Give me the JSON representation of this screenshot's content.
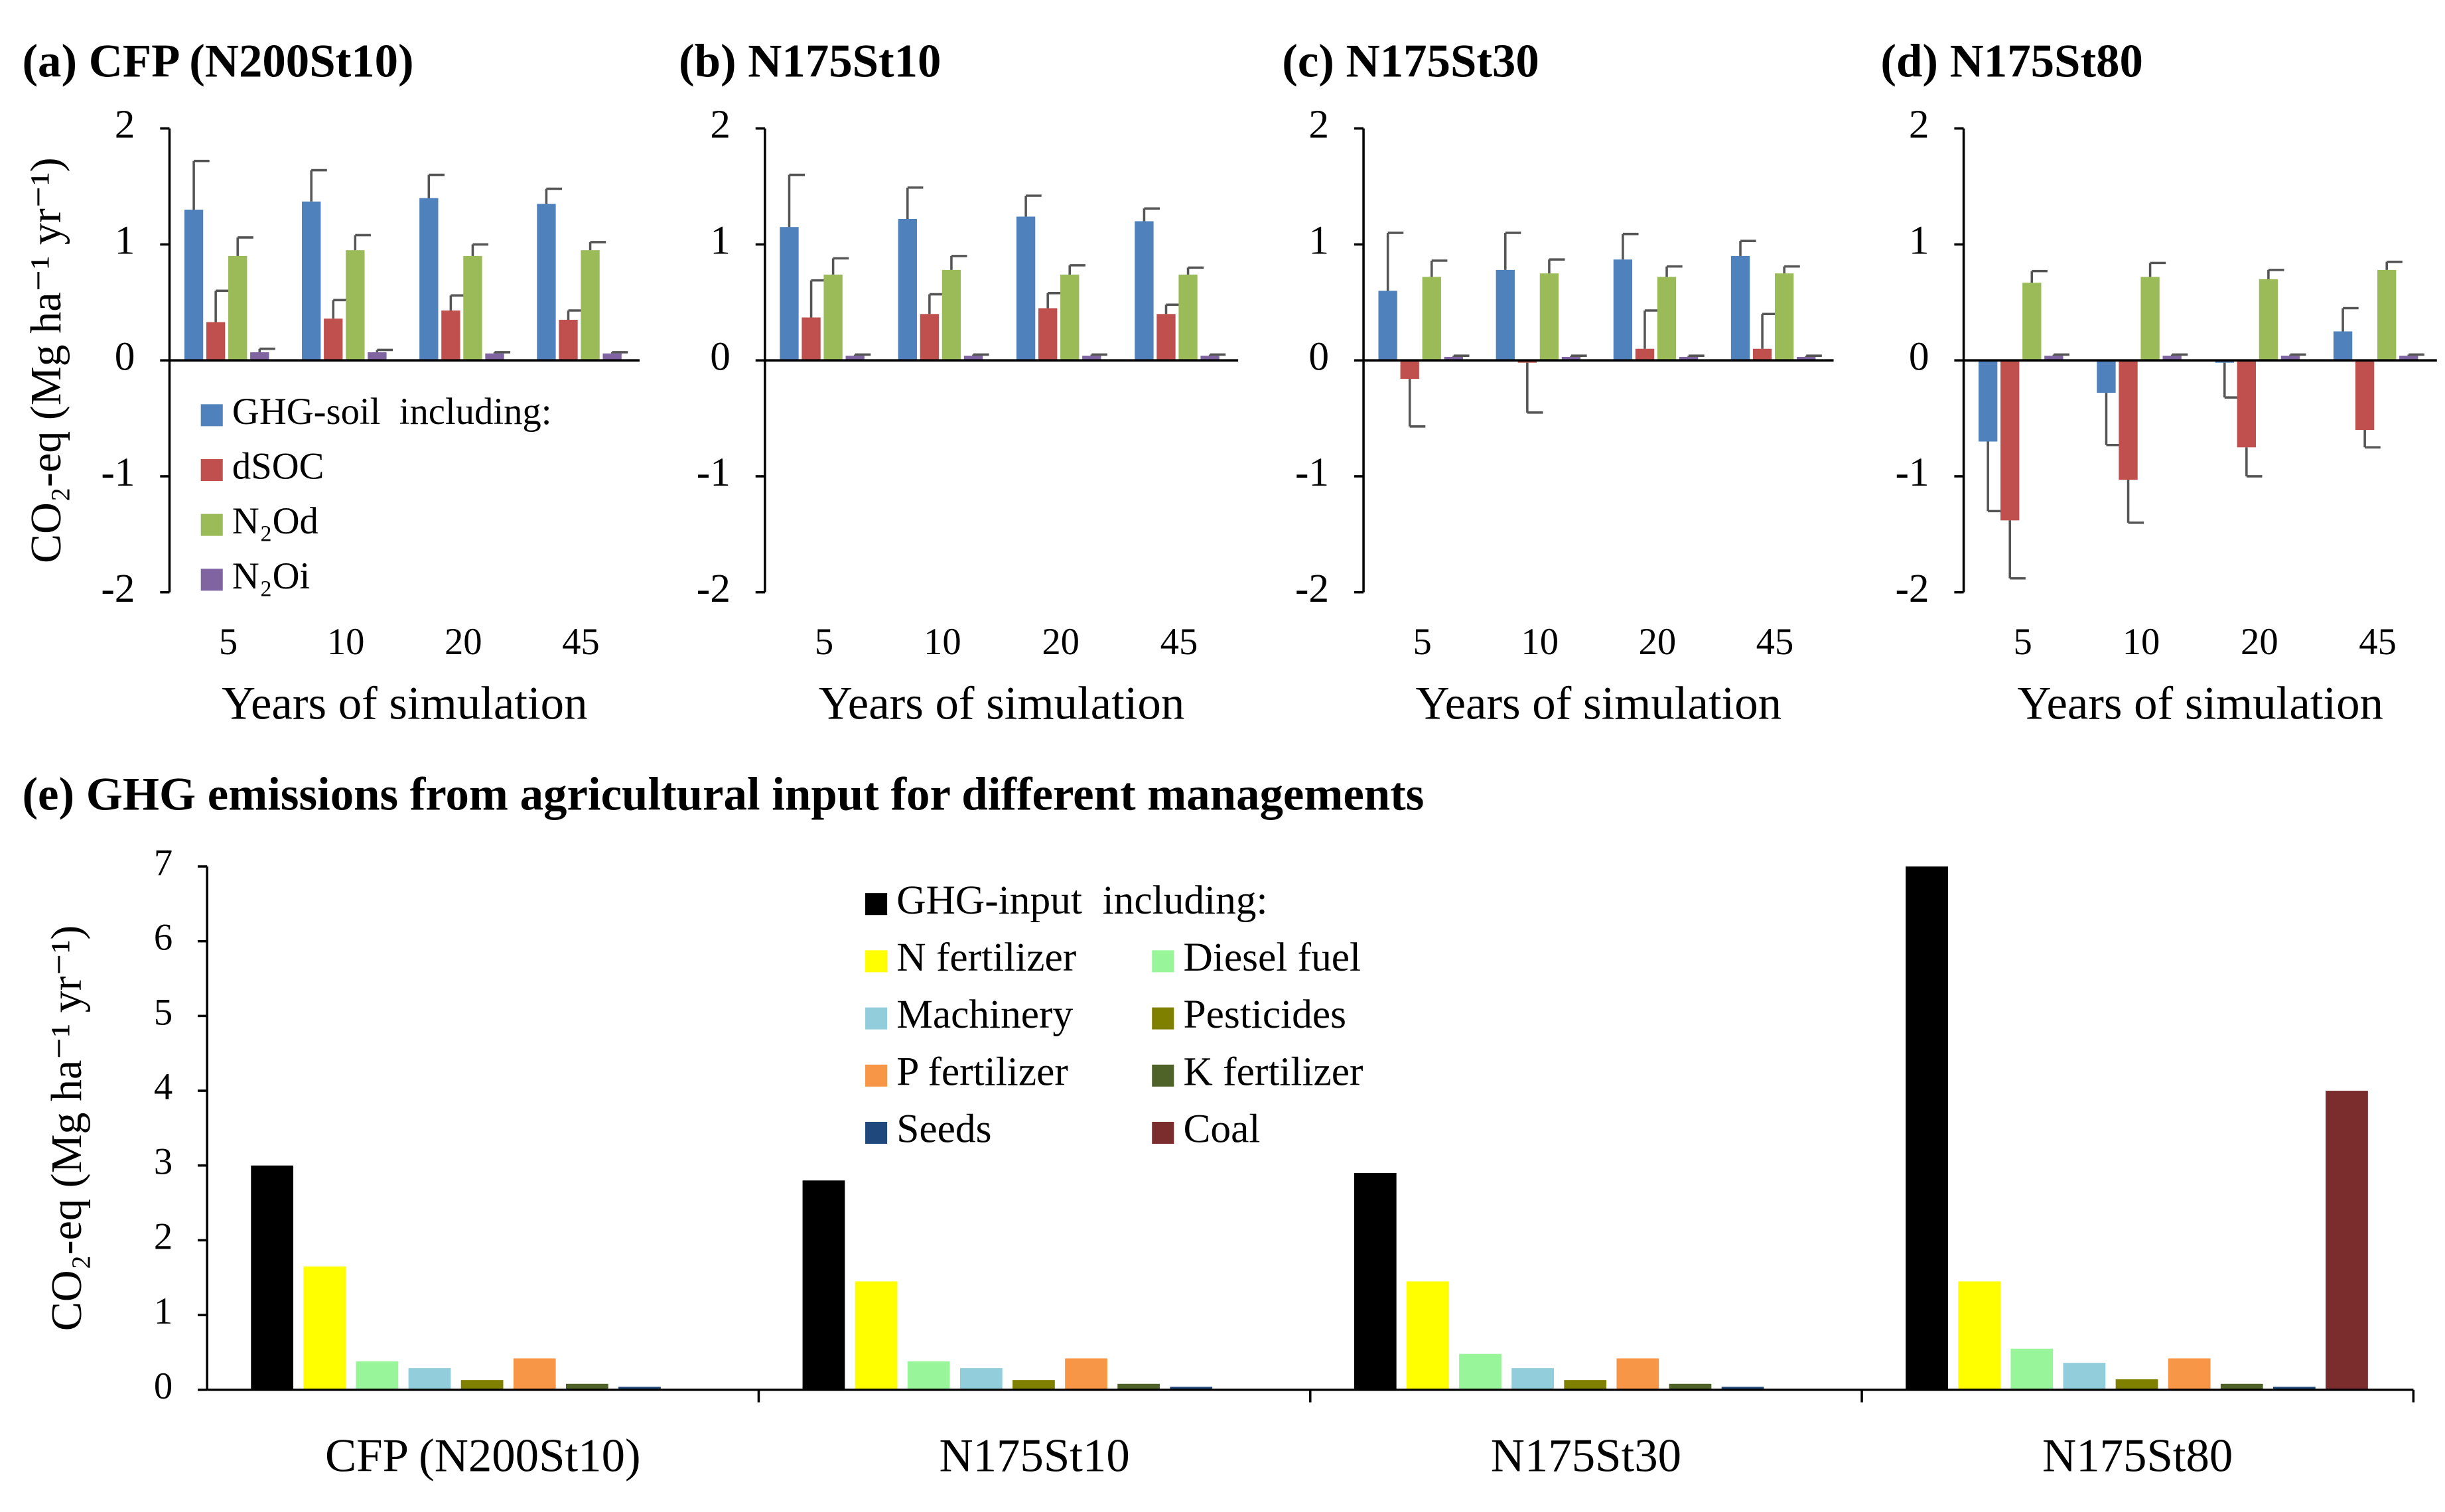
{
  "chart_data": [
    {
      "type": "bar",
      "title": "(a) CFP (N200St10)",
      "x_label": "Years of simulation",
      "y_label": "CO₂-eq (Mg ha⁻¹ yr⁻¹)",
      "categories": [
        "5",
        "10",
        "20",
        "45"
      ],
      "legend": "lower left",
      "series": [
        {
          "name": "GHG-soil  including:",
          "color": "#4f81bd",
          "values": [
            1.3,
            1.37,
            1.4,
            1.35
          ],
          "errors": [
            0.42,
            0.27,
            0.2,
            0.13
          ]
        },
        {
          "name": "dSOC",
          "color": "#c0504d",
          "values": [
            0.33,
            0.36,
            0.43,
            0.35
          ],
          "errors": [
            0.27,
            0.16,
            0.13,
            0.08
          ]
        },
        {
          "name": "N₂Od",
          "color": "#9bbb59",
          "values": [
            0.9,
            0.95,
            0.9,
            0.95
          ],
          "errors": [
            0.16,
            0.13,
            0.1,
            0.07
          ]
        },
        {
          "name": "N₂Oi",
          "color": "#8064a2",
          "values": [
            0.07,
            0.07,
            0.06,
            0.06
          ],
          "errors": [
            0.03,
            0.02,
            0.01,
            0.01
          ]
        }
      ],
      "ylim": [
        -2,
        2
      ],
      "yticks": [
        -2,
        -1,
        0,
        1,
        2
      ]
    },
    {
      "type": "bar",
      "title": "(b) N175St10",
      "x_label": "Years of simulation",
      "categories": [
        "5",
        "10",
        "20",
        "45"
      ],
      "series": [
        {
          "color": "#4f81bd",
          "values": [
            1.15,
            1.22,
            1.24,
            1.2
          ],
          "errors": [
            0.45,
            0.27,
            0.18,
            0.11
          ]
        },
        {
          "color": "#c0504d",
          "values": [
            0.37,
            0.4,
            0.45,
            0.4
          ],
          "errors": [
            0.32,
            0.17,
            0.13,
            0.08
          ]
        },
        {
          "color": "#9bbb59",
          "values": [
            0.74,
            0.78,
            0.74,
            0.74
          ],
          "errors": [
            0.14,
            0.12,
            0.08,
            0.06
          ]
        },
        {
          "color": "#8064a2",
          "values": [
            0.04,
            0.04,
            0.04,
            0.04
          ],
          "errors": [
            0.01,
            0.01,
            0.01,
            0.01
          ]
        }
      ],
      "ylim": [
        -2,
        2
      ],
      "yticks": [
        -2,
        -1,
        0,
        1,
        2
      ]
    },
    {
      "type": "bar",
      "title": "(c) N175St30",
      "x_label": "Years of simulation",
      "categories": [
        "5",
        "10",
        "20",
        "45"
      ],
      "series": [
        {
          "color": "#4f81bd",
          "values": [
            0.6,
            0.78,
            0.87,
            0.9
          ],
          "errors": [
            0.5,
            0.32,
            0.22,
            0.13
          ]
        },
        {
          "color": "#c0504d",
          "values": [
            -0.16,
            -0.02,
            0.1,
            0.1
          ],
          "errors": [
            0.41,
            0.43,
            0.33,
            0.3
          ]
        },
        {
          "color": "#9bbb59",
          "values": [
            0.72,
            0.75,
            0.72,
            0.75
          ],
          "errors": [
            0.14,
            0.12,
            0.09,
            0.06
          ]
        },
        {
          "color": "#8064a2",
          "values": [
            0.03,
            0.03,
            0.03,
            0.03
          ],
          "errors": [
            0.01,
            0.01,
            0.01,
            0.01
          ]
        }
      ],
      "ylim": [
        -2,
        2
      ],
      "yticks": [
        -2,
        -1,
        0,
        1,
        2
      ]
    },
    {
      "type": "bar",
      "title": "(d) N175St80",
      "x_label": "Years of simulation",
      "categories": [
        "5",
        "10",
        "20",
        "45"
      ],
      "series": [
        {
          "color": "#4f81bd",
          "values": [
            -0.7,
            -0.28,
            -0.02,
            0.25
          ],
          "errors": [
            0.6,
            0.45,
            0.3,
            0.2
          ]
        },
        {
          "color": "#c0504d",
          "values": [
            -1.38,
            -1.03,
            -0.75,
            -0.6
          ],
          "errors": [
            0.5,
            0.37,
            0.25,
            0.15
          ]
        },
        {
          "color": "#9bbb59",
          "values": [
            0.67,
            0.72,
            0.7,
            0.78
          ],
          "errors": [
            0.1,
            0.12,
            0.08,
            0.07
          ]
        },
        {
          "color": "#8064a2",
          "values": [
            0.04,
            0.04,
            0.04,
            0.04
          ],
          "errors": [
            0.01,
            0.01,
            0.01,
            0.01
          ]
        }
      ],
      "ylim": [
        -2,
        2
      ],
      "yticks": [
        -2,
        -1,
        0,
        1,
        2
      ]
    },
    {
      "type": "bar",
      "title": "(e) GHG emissions from agricultural input for different managements",
      "y_label": "CO₂-eq (Mg ha⁻¹ yr⁻¹)",
      "categories": [
        "CFP (N200St10)",
        "N175St10",
        "N175St30",
        "N175St80"
      ],
      "legend": "upper center",
      "series": [
        {
          "name": "GHG-input  including:",
          "color": "#000000",
          "values": [
            3.0,
            2.8,
            2.9,
            7.0
          ]
        },
        {
          "name": "N fertilizer",
          "color": "#ffff00",
          "values": [
            1.65,
            1.45,
            1.45,
            1.45
          ]
        },
        {
          "name": "Diesel fuel",
          "color": "#99f599",
          "values": [
            0.38,
            0.38,
            0.48,
            0.55
          ]
        },
        {
          "name": "Machinery",
          "color": "#92cddc",
          "values": [
            0.29,
            0.29,
            0.29,
            0.36
          ]
        },
        {
          "name": "Pesticides",
          "color": "#808000",
          "values": [
            0.13,
            0.13,
            0.13,
            0.14
          ]
        },
        {
          "name": "P fertilizer",
          "color": "#f79646",
          "values": [
            0.42,
            0.42,
            0.42,
            0.42
          ]
        },
        {
          "name": "K fertilizer",
          "color": "#4f6228",
          "values": [
            0.08,
            0.08,
            0.08,
            0.08
          ]
        },
        {
          "name": "Seeds",
          "color": "#1f497d",
          "values": [
            0.04,
            0.04,
            0.04,
            0.04
          ]
        },
        {
          "name": "Coal",
          "color": "#7b2c2c",
          "values": [
            0,
            0,
            0,
            4.0
          ]
        }
      ],
      "ylim": [
        0,
        7
      ],
      "yticks": [
        0,
        1,
        2,
        3,
        4,
        5,
        6,
        7
      ]
    }
  ]
}
